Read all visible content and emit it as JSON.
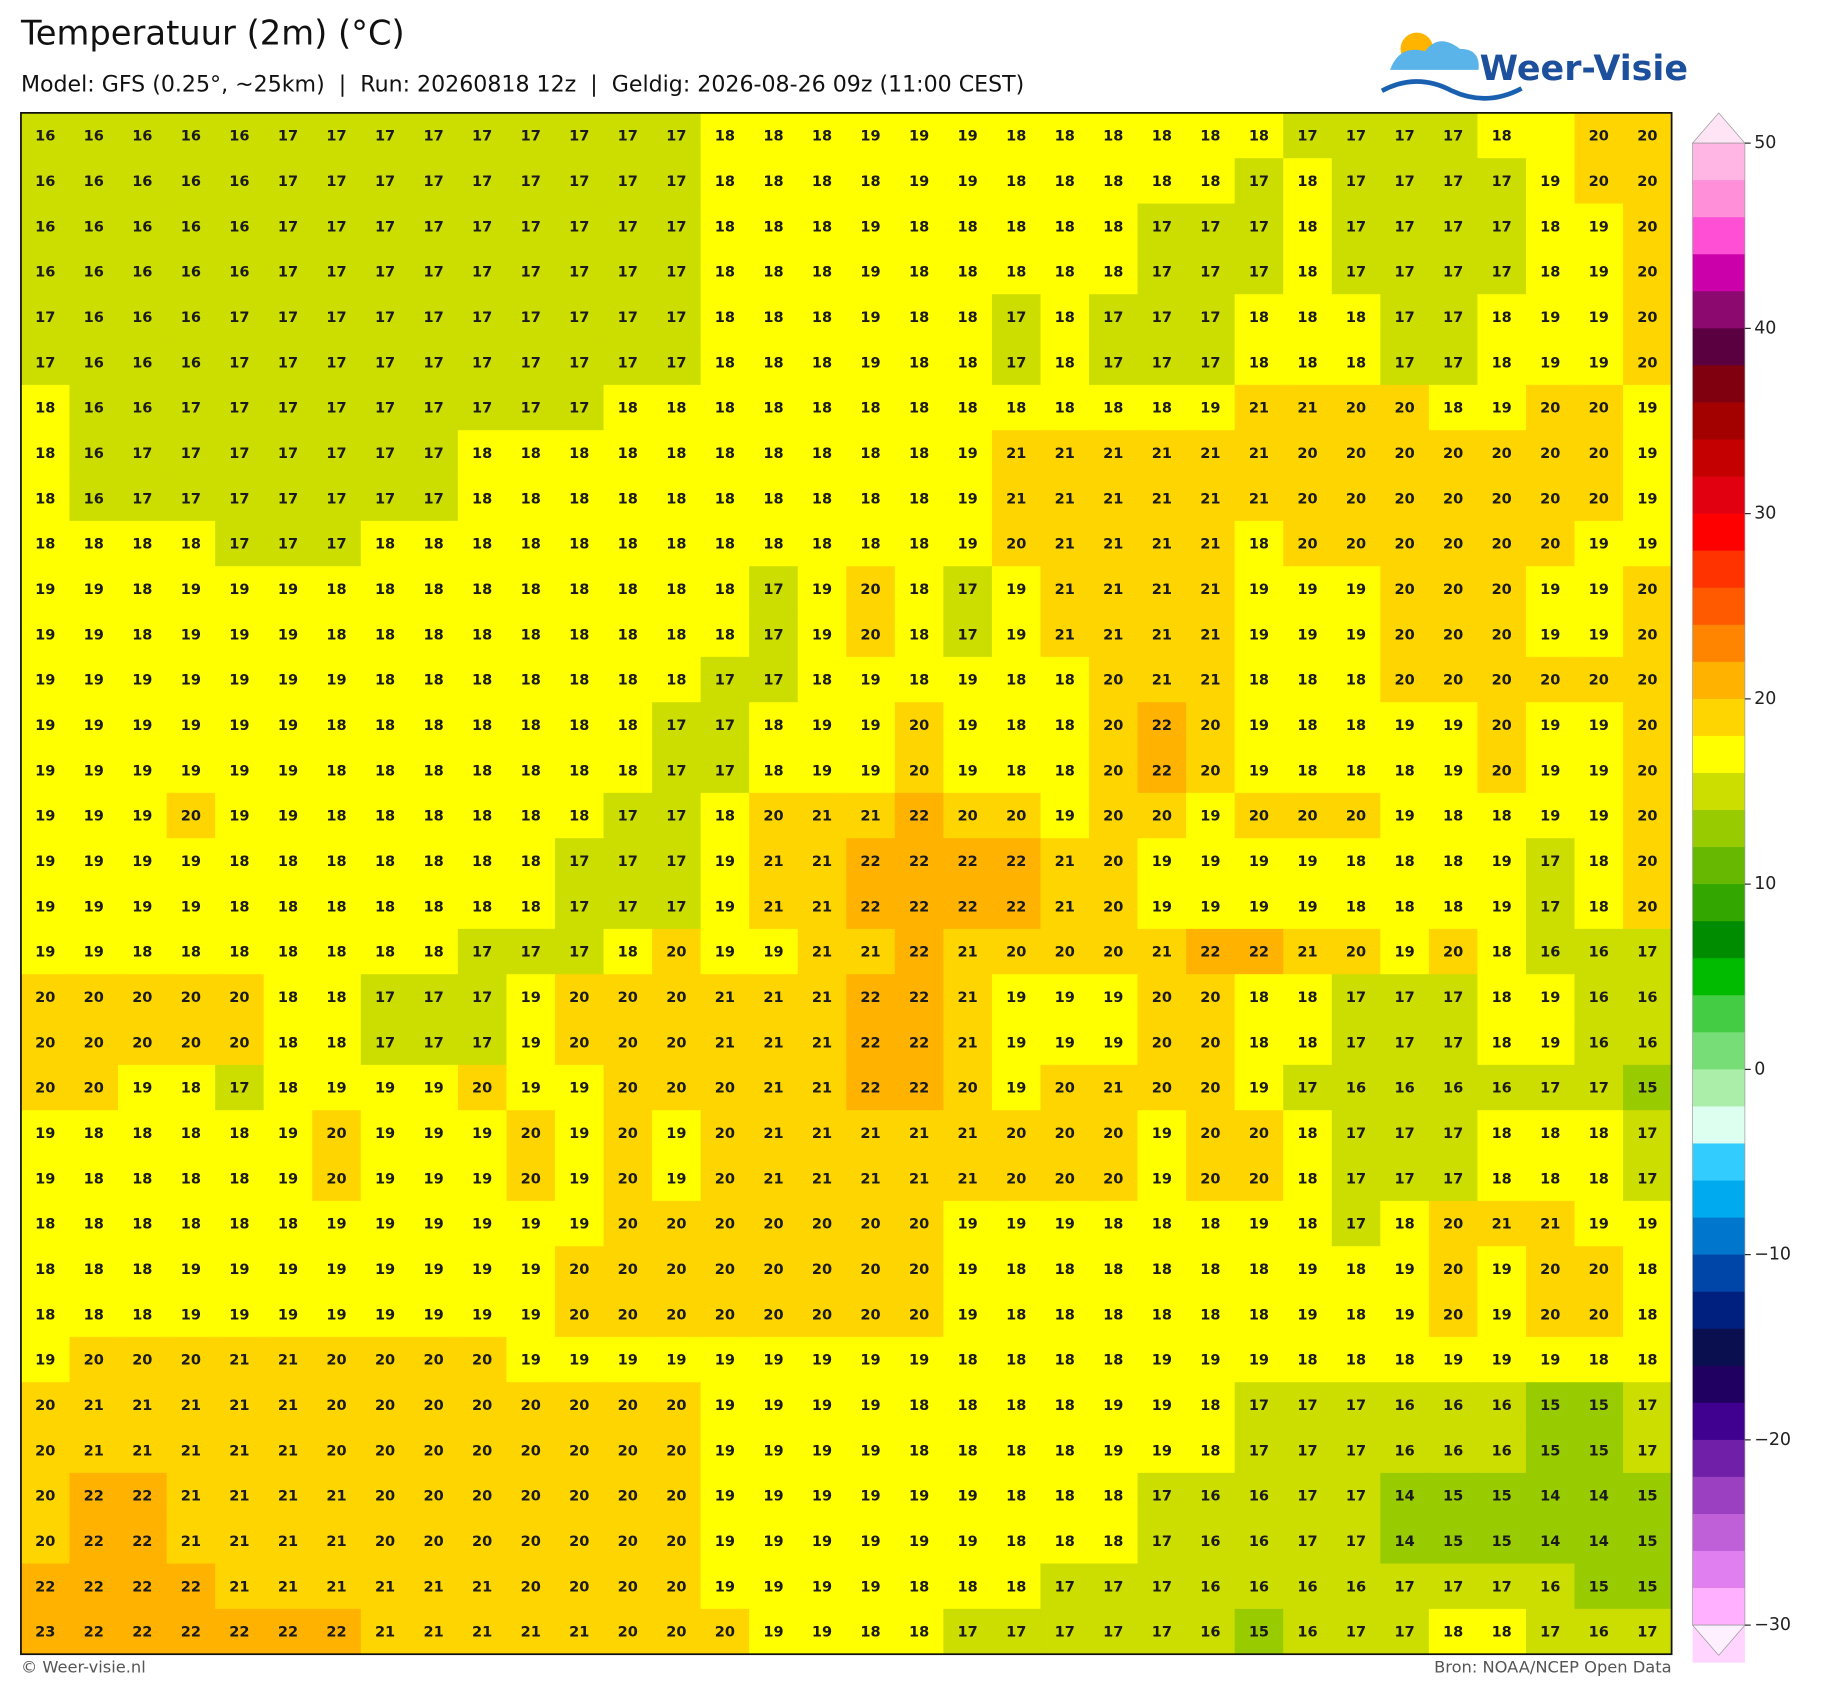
{
  "header": {
    "title": "Temperatuur (2m) (°C)",
    "subtitle": "Model: GFS (0.25°, ~25km)  |  Run: 20260818 12z  |  Geldig: 2026-08-26 09z (11:00 CEST)",
    "logo": "Weer-Visie"
  },
  "map": {
    "values": [
      [
        16,
        16,
        16,
        16,
        16,
        17,
        17,
        17,
        17,
        17,
        17,
        17,
        17,
        17,
        18,
        18,
        18,
        19,
        19,
        19,
        18,
        18,
        18,
        18,
        18,
        18,
        17,
        17,
        17,
        17,
        18,
        null,
        20,
        20
      ],
      [
        16,
        16,
        16,
        16,
        16,
        17,
        17,
        17,
        17,
        17,
        17,
        17,
        17,
        17,
        18,
        18,
        18,
        18,
        19,
        19,
        18,
        18,
        18,
        18,
        18,
        17,
        18,
        17,
        17,
        17,
        17,
        19,
        20,
        20
      ],
      [
        16,
        16,
        16,
        16,
        16,
        17,
        17,
        17,
        17,
        17,
        17,
        17,
        17,
        17,
        18,
        18,
        18,
        19,
        18,
        18,
        18,
        18,
        18,
        17,
        17,
        17,
        18,
        17,
        17,
        17,
        17,
        18,
        19,
        20
      ],
      [
        16,
        16,
        16,
        16,
        16,
        17,
        17,
        17,
        17,
        17,
        17,
        17,
        17,
        17,
        18,
        18,
        18,
        19,
        18,
        18,
        18,
        18,
        18,
        17,
        17,
        17,
        18,
        17,
        17,
        17,
        17,
        18,
        19,
        20
      ],
      [
        17,
        16,
        16,
        16,
        17,
        17,
        17,
        17,
        17,
        17,
        17,
        17,
        17,
        17,
        18,
        18,
        18,
        19,
        18,
        18,
        17,
        18,
        17,
        17,
        17,
        18,
        18,
        18,
        17,
        17,
        18,
        19,
        19,
        20
      ],
      [
        17,
        16,
        16,
        16,
        17,
        17,
        17,
        17,
        17,
        17,
        17,
        17,
        17,
        17,
        18,
        18,
        18,
        19,
        18,
        18,
        17,
        18,
        17,
        17,
        17,
        18,
        18,
        18,
        17,
        17,
        18,
        19,
        19,
        20
      ],
      [
        18,
        16,
        16,
        17,
        17,
        17,
        17,
        17,
        17,
        17,
        17,
        17,
        18,
        18,
        18,
        18,
        18,
        18,
        18,
        18,
        18,
        18,
        18,
        18,
        19,
        21,
        21,
        20,
        20,
        18,
        19,
        20,
        20,
        19
      ],
      [
        18,
        16,
        17,
        17,
        17,
        17,
        17,
        17,
        17,
        18,
        18,
        18,
        18,
        18,
        18,
        18,
        18,
        18,
        18,
        19,
        21,
        21,
        21,
        21,
        21,
        21,
        20,
        20,
        20,
        20,
        20,
        20,
        20,
        19
      ],
      [
        18,
        16,
        17,
        17,
        17,
        17,
        17,
        17,
        17,
        18,
        18,
        18,
        18,
        18,
        18,
        18,
        18,
        18,
        18,
        19,
        21,
        21,
        21,
        21,
        21,
        21,
        20,
        20,
        20,
        20,
        20,
        20,
        20,
        19
      ],
      [
        18,
        18,
        18,
        18,
        17,
        17,
        17,
        18,
        18,
        18,
        18,
        18,
        18,
        18,
        18,
        18,
        18,
        18,
        18,
        19,
        20,
        21,
        21,
        21,
        21,
        18,
        20,
        20,
        20,
        20,
        20,
        20,
        19,
        19
      ],
      [
        19,
        19,
        18,
        19,
        19,
        19,
        18,
        18,
        18,
        18,
        18,
        18,
        18,
        18,
        18,
        17,
        19,
        20,
        18,
        17,
        19,
        21,
        21,
        21,
        21,
        19,
        19,
        19,
        20,
        20,
        20,
        19,
        19,
        20
      ],
      [
        19,
        19,
        18,
        19,
        19,
        19,
        18,
        18,
        18,
        18,
        18,
        18,
        18,
        18,
        18,
        17,
        19,
        20,
        18,
        17,
        19,
        21,
        21,
        21,
        21,
        19,
        19,
        19,
        20,
        20,
        20,
        19,
        19,
        20
      ],
      [
        19,
        19,
        19,
        19,
        19,
        19,
        19,
        18,
        18,
        18,
        18,
        18,
        18,
        18,
        17,
        17,
        18,
        19,
        18,
        19,
        18,
        18,
        20,
        21,
        21,
        18,
        18,
        18,
        20,
        20,
        20,
        20,
        20,
        20
      ],
      [
        19,
        19,
        19,
        19,
        19,
        19,
        18,
        18,
        18,
        18,
        18,
        18,
        18,
        17,
        17,
        18,
        19,
        19,
        20,
        19,
        18,
        18,
        20,
        22,
        20,
        19,
        18,
        18,
        19,
        19,
        20,
        19,
        19,
        20
      ],
      [
        19,
        19,
        19,
        19,
        19,
        19,
        18,
        18,
        18,
        18,
        18,
        18,
        18,
        17,
        17,
        18,
        19,
        19,
        20,
        19,
        18,
        18,
        20,
        22,
        20,
        19,
        18,
        18,
        18,
        19,
        20,
        19,
        19,
        20
      ],
      [
        19,
        19,
        19,
        20,
        19,
        19,
        18,
        18,
        18,
        18,
        18,
        18,
        17,
        17,
        18,
        20,
        21,
        21,
        22,
        20,
        20,
        19,
        20,
        20,
        19,
        20,
        20,
        20,
        19,
        18,
        18,
        19,
        19,
        20
      ],
      [
        19,
        19,
        19,
        19,
        18,
        18,
        18,
        18,
        18,
        18,
        18,
        17,
        17,
        17,
        19,
        21,
        21,
        22,
        22,
        22,
        22,
        21,
        20,
        19,
        19,
        19,
        19,
        18,
        18,
        18,
        19,
        17,
        18,
        20
      ],
      [
        19,
        19,
        19,
        19,
        18,
        18,
        18,
        18,
        18,
        18,
        18,
        17,
        17,
        17,
        19,
        21,
        21,
        22,
        22,
        22,
        22,
        21,
        20,
        19,
        19,
        19,
        19,
        18,
        18,
        18,
        19,
        17,
        18,
        20
      ],
      [
        19,
        19,
        18,
        18,
        18,
        18,
        18,
        18,
        18,
        17,
        17,
        17,
        18,
        20,
        19,
        19,
        21,
        21,
        22,
        21,
        20,
        20,
        20,
        21,
        22,
        22,
        21,
        20,
        19,
        20,
        18,
        16,
        16,
        17
      ],
      [
        20,
        20,
        20,
        20,
        20,
        18,
        18,
        17,
        17,
        17,
        19,
        20,
        20,
        20,
        21,
        21,
        21,
        22,
        22,
        21,
        19,
        19,
        19,
        20,
        20,
        18,
        18,
        17,
        17,
        17,
        18,
        19,
        16,
        16
      ],
      [
        20,
        20,
        20,
        20,
        20,
        18,
        18,
        17,
        17,
        17,
        19,
        20,
        20,
        20,
        21,
        21,
        21,
        22,
        22,
        21,
        19,
        19,
        19,
        20,
        20,
        18,
        18,
        17,
        17,
        17,
        18,
        19,
        16,
        16
      ],
      [
        20,
        20,
        19,
        18,
        17,
        18,
        19,
        19,
        19,
        20,
        19,
        19,
        20,
        20,
        20,
        21,
        21,
        22,
        22,
        20,
        19,
        20,
        21,
        20,
        20,
        19,
        17,
        16,
        16,
        16,
        16,
        17,
        17,
        15
      ],
      [
        19,
        18,
        18,
        18,
        18,
        19,
        20,
        19,
        19,
        19,
        20,
        19,
        20,
        19,
        20,
        21,
        21,
        21,
        21,
        21,
        20,
        20,
        20,
        19,
        20,
        20,
        18,
        17,
        17,
        17,
        18,
        18,
        18,
        17
      ],
      [
        19,
        18,
        18,
        18,
        18,
        19,
        20,
        19,
        19,
        19,
        20,
        19,
        20,
        19,
        20,
        21,
        21,
        21,
        21,
        21,
        20,
        20,
        20,
        19,
        20,
        20,
        18,
        17,
        17,
        17,
        18,
        18,
        18,
        17
      ],
      [
        18,
        18,
        18,
        18,
        18,
        18,
        19,
        19,
        19,
        19,
        19,
        19,
        20,
        20,
        20,
        20,
        20,
        20,
        20,
        19,
        19,
        19,
        18,
        18,
        18,
        19,
        18,
        17,
        18,
        20,
        21,
        21,
        19,
        19
      ],
      [
        18,
        18,
        18,
        19,
        19,
        19,
        19,
        19,
        19,
        19,
        19,
        20,
        20,
        20,
        20,
        20,
        20,
        20,
        20,
        19,
        18,
        18,
        18,
        18,
        18,
        18,
        19,
        18,
        19,
        20,
        19,
        20,
        20,
        18
      ],
      [
        18,
        18,
        18,
        19,
        19,
        19,
        19,
        19,
        19,
        19,
        19,
        20,
        20,
        20,
        20,
        20,
        20,
        20,
        20,
        19,
        18,
        18,
        18,
        18,
        18,
        18,
        19,
        18,
        19,
        20,
        19,
        20,
        20,
        18
      ],
      [
        19,
        20,
        20,
        20,
        21,
        21,
        20,
        20,
        20,
        20,
        19,
        19,
        19,
        19,
        19,
        19,
        19,
        19,
        19,
        18,
        18,
        18,
        18,
        19,
        19,
        19,
        18,
        18,
        18,
        19,
        19,
        19,
        18,
        18
      ],
      [
        20,
        21,
        21,
        21,
        21,
        21,
        20,
        20,
        20,
        20,
        20,
        20,
        20,
        20,
        19,
        19,
        19,
        19,
        18,
        18,
        18,
        18,
        19,
        19,
        18,
        17,
        17,
        17,
        16,
        16,
        16,
        15,
        15,
        17
      ],
      [
        20,
        21,
        21,
        21,
        21,
        21,
        20,
        20,
        20,
        20,
        20,
        20,
        20,
        20,
        19,
        19,
        19,
        19,
        18,
        18,
        18,
        18,
        19,
        19,
        18,
        17,
        17,
        17,
        16,
        16,
        16,
        15,
        15,
        17
      ],
      [
        20,
        22,
        22,
        21,
        21,
        21,
        21,
        20,
        20,
        20,
        20,
        20,
        20,
        20,
        19,
        19,
        19,
        19,
        19,
        19,
        18,
        18,
        18,
        17,
        16,
        16,
        17,
        17,
        14,
        15,
        15,
        14,
        14,
        15
      ],
      [
        20,
        22,
        22,
        21,
        21,
        21,
        21,
        20,
        20,
        20,
        20,
        20,
        20,
        20,
        19,
        19,
        19,
        19,
        19,
        19,
        18,
        18,
        18,
        17,
        16,
        16,
        17,
        17,
        14,
        15,
        15,
        14,
        14,
        15
      ],
      [
        22,
        22,
        22,
        22,
        21,
        21,
        21,
        21,
        21,
        21,
        20,
        20,
        20,
        20,
        19,
        19,
        19,
        19,
        18,
        18,
        18,
        17,
        17,
        17,
        16,
        16,
        16,
        16,
        17,
        17,
        17,
        16,
        15,
        15
      ],
      [
        23,
        22,
        22,
        22,
        22,
        22,
        22,
        21,
        21,
        21,
        21,
        21,
        20,
        20,
        20,
        19,
        19,
        18,
        18,
        17,
        17,
        17,
        17,
        17,
        16,
        15,
        16,
        17,
        17,
        18,
        18,
        17,
        16,
        17
      ]
    ]
  },
  "colorbar": {
    "lim": [
      -30,
      50
    ],
    "ticks": [
      50,
      40,
      30,
      20,
      10,
      0,
      {
        "value": -10,
        "label": "−10"
      },
      {
        "value": -20,
        "label": "−20"
      },
      {
        "value": -30,
        "label": "−30"
      }
    ],
    "colors": [
      "#ffe4f6",
      "#ffb6e4",
      "#ff8fd8",
      "#ff4fd4",
      "#cc00aa",
      "#8c0a70",
      "#5a0040",
      "#800010",
      "#a30000",
      "#c40000",
      "#e00010",
      "#ff0000",
      "#ff3300",
      "#ff5a00",
      "#ff8400",
      "#ffb200",
      "#ffd500",
      "#ffff00",
      "#ccdd00",
      "#99cc00",
      "#66b800",
      "#33a600",
      "#008c00",
      "#00bb00",
      "#44cc44",
      "#77dd77",
      "#aaeeaa",
      "#ddfff0",
      "#33ccff",
      "#00aaee",
      "#0077cc",
      "#0046a8",
      "#002080",
      "#0a0f50",
      "#200060",
      "#400090",
      "#7020a8",
      "#9a40c0",
      "#c060d8",
      "#e080f0",
      "#ffb0ff",
      "#ffd4ff",
      "#fff0ff"
    ]
  },
  "footer": {
    "left": "© Weer-visie.nl",
    "right": "Bron: NOAA/NCEP Open Data"
  }
}
